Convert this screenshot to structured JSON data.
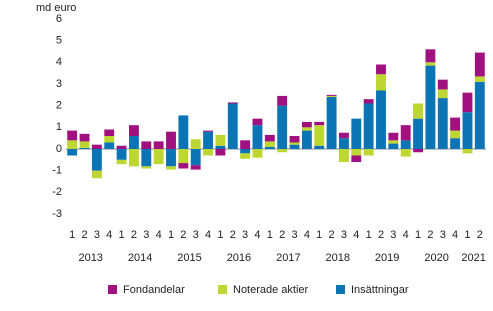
{
  "chart_data": {
    "type": "stacked-bar",
    "y_label": "md euro",
    "categories": [
      "1",
      "2",
      "3",
      "4",
      "1",
      "2",
      "3",
      "4",
      "1",
      "2",
      "3",
      "4",
      "1",
      "2",
      "3",
      "4",
      "1",
      "2",
      "3",
      "4",
      "1",
      "2",
      "3",
      "4",
      "1",
      "2",
      "3",
      "4",
      "1",
      "2",
      "3",
      "4",
      "1",
      "2"
    ],
    "years": [
      "2013",
      "2014",
      "2015",
      "2016",
      "2017",
      "2018",
      "2019",
      "2020",
      "2021"
    ],
    "ylim": [
      -3,
      6
    ],
    "yticks": [
      -3,
      -2,
      -1,
      0,
      1,
      2,
      3,
      4,
      5,
      6
    ],
    "series": [
      {
        "name": "Insättningar",
        "color": "#0b74b5",
        "values": [
          -0.3,
          0.05,
          -1.0,
          0.3,
          -0.5,
          0.6,
          -0.8,
          0,
          -0.8,
          1.55,
          -0.75,
          0.8,
          0.15,
          2.1,
          -0.2,
          1.1,
          0.1,
          2.0,
          0.2,
          0.85,
          0.15,
          2.4,
          0.5,
          1.4,
          2.1,
          2.7,
          0.25,
          0.4,
          1.4,
          3.85,
          2.35,
          0.5,
          1.7,
          3.1
        ]
      },
      {
        "name": "Noterade aktier",
        "color": "#bdd631",
        "values": [
          0.4,
          0.3,
          -0.35,
          0.3,
          -0.2,
          -0.8,
          -0.1,
          -0.7,
          -0.15,
          -0.65,
          0.45,
          -0.3,
          0.5,
          0,
          -0.25,
          -0.4,
          0.25,
          -0.15,
          0.1,
          0.15,
          0.95,
          0.05,
          -0.6,
          -0.3,
          -0.3,
          0.75,
          0.15,
          -0.35,
          0.7,
          0.15,
          0.4,
          0.35,
          -0.2,
          0.25
        ]
      },
      {
        "name": "Fondandelar",
        "color": "#a0117f",
        "values": [
          0.45,
          0.35,
          0.2,
          0.3,
          0.15,
          0.5,
          0.35,
          0.35,
          0.8,
          -0.25,
          -0.2,
          0.05,
          -0.3,
          0.05,
          0.4,
          0.3,
          0.3,
          0.45,
          0.3,
          0.25,
          0.15,
          0.05,
          0.25,
          -0.3,
          0.2,
          0.45,
          0.35,
          0.7,
          -0.15,
          0.6,
          0.45,
          0.6,
          0.9,
          1.1
        ]
      }
    ]
  }
}
